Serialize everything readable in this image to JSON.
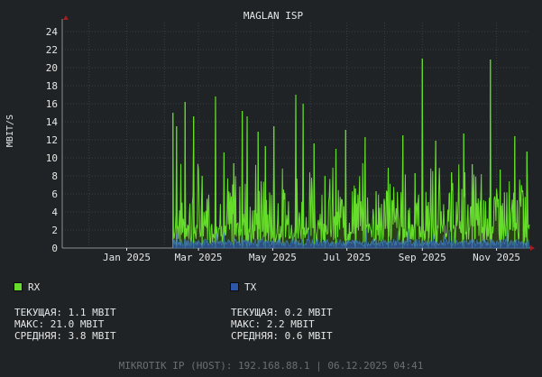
{
  "chart_data": {
    "type": "area",
    "title": "MAGLAN ISP",
    "ylabel": "MBIT/S",
    "xlabel": "",
    "ylim": [
      0,
      25
    ],
    "y_ticks": [
      "0",
      "2",
      "4",
      "6",
      "8",
      "10",
      "12",
      "14",
      "16",
      "18",
      "20",
      "22",
      "24"
    ],
    "x_range": [
      "2024-11-09",
      "2025-11-28"
    ],
    "x_ticks": [
      {
        "date": "2025-01-01",
        "label": "Jan 2025"
      },
      {
        "date": "2025-03-01",
        "label": "Mar 2025"
      },
      {
        "date": "2025-05-01",
        "label": "May 2025"
      },
      {
        "date": "2025-07-01",
        "label": "Jul 2025"
      },
      {
        "date": "2025-09-01",
        "label": "Sep 2025"
      },
      {
        "date": "2025-11-01",
        "label": "Nov 2025"
      }
    ],
    "grid": true,
    "legend": "bottom",
    "series": [
      {
        "name": "RX",
        "color": "#66dd2b",
        "x_start": "2025-02-08",
        "x_end": "2025-11-28",
        "peaks": [
          {
            "date": "2025-02-08",
            "value": 15.0
          },
          {
            "date": "2025-02-11",
            "value": 13.5
          },
          {
            "date": "2025-02-18",
            "value": 16.2
          },
          {
            "date": "2025-02-25",
            "value": 14.6
          },
          {
            "date": "2025-03-04",
            "value": 8.0
          },
          {
            "date": "2025-03-15",
            "value": 16.8
          },
          {
            "date": "2025-03-22",
            "value": 10.6
          },
          {
            "date": "2025-03-30",
            "value": 9.4
          },
          {
            "date": "2025-04-06",
            "value": 15.2
          },
          {
            "date": "2025-04-10",
            "value": 14.6
          },
          {
            "date": "2025-04-19",
            "value": 12.9
          },
          {
            "date": "2025-04-25",
            "value": 11.3
          },
          {
            "date": "2025-05-02",
            "value": 13.5
          },
          {
            "date": "2025-05-20",
            "value": 17.0
          },
          {
            "date": "2025-05-26",
            "value": 16.0
          },
          {
            "date": "2025-06-04",
            "value": 11.6
          },
          {
            "date": "2025-06-13",
            "value": 8.0
          },
          {
            "date": "2025-06-22",
            "value": 11.0
          },
          {
            "date": "2025-06-30",
            "value": 13.1
          },
          {
            "date": "2025-07-08",
            "value": 6.6
          },
          {
            "date": "2025-07-16",
            "value": 12.3
          },
          {
            "date": "2025-07-25",
            "value": 6.3
          },
          {
            "date": "2025-08-04",
            "value": 8.9
          },
          {
            "date": "2025-08-16",
            "value": 12.5
          },
          {
            "date": "2025-08-26",
            "value": 8.3
          },
          {
            "date": "2025-09-01",
            "value": 21.0
          },
          {
            "date": "2025-09-06",
            "value": 5.1
          },
          {
            "date": "2025-09-12",
            "value": 11.9
          },
          {
            "date": "2025-09-25",
            "value": 8.4
          },
          {
            "date": "2025-10-05",
            "value": 12.7
          },
          {
            "date": "2025-10-12",
            "value": 9.3
          },
          {
            "date": "2025-10-19",
            "value": 5.3
          },
          {
            "date": "2025-10-27",
            "value": 20.9
          },
          {
            "date": "2025-11-04",
            "value": 8.7
          },
          {
            "date": "2025-11-10",
            "value": 1.4
          },
          {
            "date": "2025-11-16",
            "value": 12.4
          },
          {
            "date": "2025-11-23",
            "value": 5.5
          },
          {
            "date": "2025-11-26",
            "value": 10.7
          }
        ]
      },
      {
        "name": "TX",
        "color": "#2d55a8",
        "x_start": "2025-02-08",
        "x_end": "2025-11-28",
        "typical": 0.6,
        "max": 2.2
      }
    ]
  },
  "legend": {
    "rx": {
      "label": "RX",
      "current": "ТЕКУЩАЯ: 1.1 MBIT",
      "max": "МАКС: 21.0 MBIT",
      "avg": "СРЕДНЯЯ: 3.8 MBIT"
    },
    "tx": {
      "label": "TX",
      "current": "ТЕКУЩАЯ: 0.2 MBIT",
      "max": "МАКС: 2.2 MBIT",
      "avg": "СРЕДНЯЯ: 0.6 MBIT"
    }
  },
  "footer": "MIKROTIK IP (HOST): 192.168.88.1 | 06.12.2025 04:41",
  "colors": {
    "background": "#1f2326",
    "grid": "#3a3e42",
    "axis_text": "#e6e6e6",
    "arrow": "#a11d1d"
  }
}
